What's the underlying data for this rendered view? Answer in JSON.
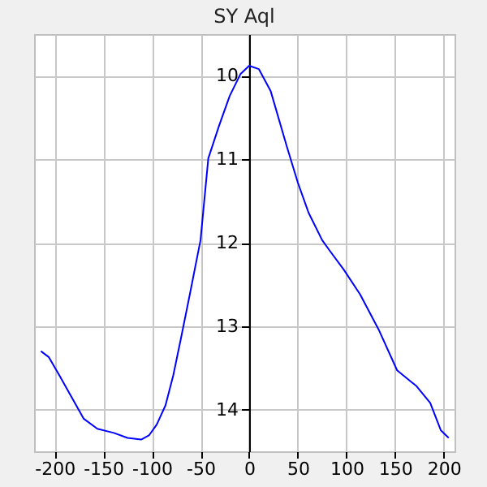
{
  "chart_data": {
    "type": "line",
    "title": "SY Aql",
    "x": [
      -214,
      -206,
      -195,
      -184,
      -170,
      -156,
      -139,
      -125,
      -111,
      -103,
      -95,
      -86,
      -78,
      -70,
      -61,
      -50,
      -42,
      -31,
      -20,
      -9,
      0,
      10,
      22,
      39,
      50,
      61,
      75,
      83,
      97,
      114,
      133,
      152,
      172,
      186,
      197,
      205
    ],
    "series": [
      {
        "color": "#0000ff",
        "values": [
          13.3,
          13.37,
          13.59,
          13.82,
          14.11,
          14.23,
          14.28,
          14.34,
          14.36,
          14.31,
          14.18,
          13.95,
          13.59,
          13.14,
          12.62,
          11.97,
          10.99,
          10.6,
          10.24,
          9.98,
          9.88,
          9.92,
          10.18,
          10.86,
          11.28,
          11.64,
          11.97,
          12.1,
          12.32,
          12.62,
          13.04,
          13.53,
          13.72,
          13.92,
          14.25,
          14.34
        ]
      }
    ],
    "xlim": [
      -221,
      211
    ],
    "xticks": [
      -200,
      -150,
      -100,
      -50,
      0,
      50,
      100,
      150,
      200
    ],
    "ylim": [
      14.5,
      9.5
    ],
    "yticks": [
      10,
      11,
      12,
      13,
      14
    ],
    "grid": true
  }
}
